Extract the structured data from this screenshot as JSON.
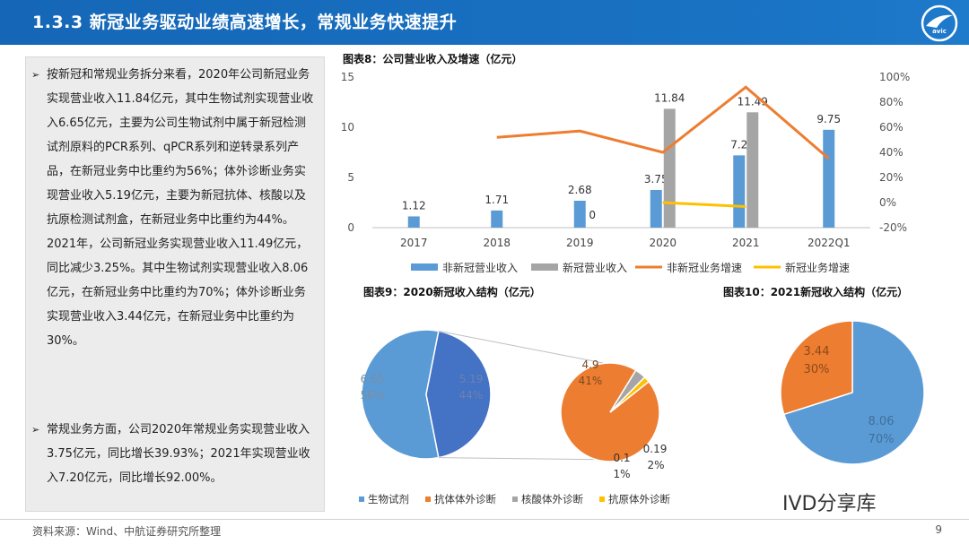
{
  "header": {
    "title": "1.3.3 新冠业务驱动业绩高速增长，常规业务快速提升"
  },
  "left_text": {
    "para1": "按新冠和常规业务拆分来看，2020年公司新冠业务实现营业收入11.84亿元，其中生物试剂实现营业收入6.65亿元，主要为公司生物试剂中属于新冠检测试剂原料的PCR系列、qPCR系列和逆转录系列产品，在新冠业务中比重约为56%；体外诊断业务实现营业收入5.19亿元，主要为新冠抗体、核酸以及抗原检测试剂盒，在新冠业务中比重约为44%。2021年，公司新冠业务实现营业收入11.49亿元，同比减少3.25%。其中生物试剂实现营业收入8.06亿元，在新冠业务中比重约为70%；体外诊断业务实现营业收入3.44亿元，在新冠业务中比重约为30%。",
    "para2": "常规业务方面，公司2020年常规业务实现营业收入3.75亿元，同比增长39.93%；2021年实现营业收入7.20亿元，同比增长92.00%。",
    "bullet": "➢"
  },
  "footer": {
    "source": "资料来源：Wind、中航证券研究所整理",
    "page": "9",
    "watermark": "IVD分享库"
  },
  "chart_data": [
    {
      "type": "bar",
      "title": "图表8：公司营业收入及增速（亿元）",
      "categories": [
        "2017",
        "2018",
        "2019",
        "2020",
        "2021",
        "2022Q1"
      ],
      "series": [
        {
          "name": "非新冠营业收入",
          "kind": "bar",
          "color": "#5b9bd5",
          "values": [
            1.12,
            1.71,
            2.68,
            3.75,
            7.2,
            9.75
          ],
          "labels": [
            "1.12",
            "1.71",
            "2.68",
            "3.75",
            "7.2",
            "9.75"
          ]
        },
        {
          "name": "新冠营业收入",
          "kind": "bar",
          "color": "#a5a5a5",
          "values": [
            null,
            null,
            0,
            11.84,
            11.49,
            null
          ],
          "labels": [
            "",
            "",
            "0",
            "11.84",
            "11.49",
            ""
          ]
        },
        {
          "name": "非新冠业务增速",
          "kind": "line",
          "axis": "right",
          "color": "#ed7d31",
          "values": [
            null,
            52,
            57,
            40,
            92,
            35
          ]
        },
        {
          "name": "新冠业务增速",
          "kind": "line",
          "axis": "right",
          "color": "#ffc000",
          "values": [
            null,
            null,
            null,
            0,
            -3.25,
            null
          ]
        }
      ],
      "ylim": [
        0,
        15
      ],
      "yticks": [
        "0",
        "5",
        "10",
        "15"
      ],
      "y2lim": [
        -20,
        100
      ],
      "y2ticks": [
        "-20%",
        "0%",
        "20%",
        "40%",
        "60%",
        "80%",
        "100%"
      ],
      "legend": "bottom"
    },
    {
      "type": "pie",
      "title": "图表9：2020新冠收入结构（亿元）",
      "slices": [
        {
          "name": "生物试剂",
          "value": 6.65,
          "pct": "56%",
          "color": "#5b9bd5"
        },
        {
          "name": "体外诊断",
          "value": 5.19,
          "pct": "44%",
          "color": "#4472c4"
        }
      ],
      "sub_slices": [
        {
          "name": "抗体体外诊断",
          "value": 4.9,
          "pct": "41%",
          "color": "#ed7d31"
        },
        {
          "name": "核酸体外诊断",
          "value": 0.19,
          "pct": "2%",
          "color": "#a5a5a5"
        },
        {
          "name": "抗原体外诊断",
          "value": 0.1,
          "pct": "1%",
          "color": "#ffc000"
        }
      ],
      "legend": [
        "生物试剂",
        "抗体体外诊断",
        "核酸体外诊断",
        "抗原体外诊断"
      ],
      "legend_colors": [
        "#5b9bd5",
        "#ed7d31",
        "#a5a5a5",
        "#ffc000"
      ]
    },
    {
      "type": "pie",
      "title": "图表10：2021新冠收入结构（亿元）",
      "slices": [
        {
          "name": "生物试剂",
          "value": 8.06,
          "pct": "70%",
          "color": "#5b9bd5"
        },
        {
          "name": "体外诊断",
          "value": 3.44,
          "pct": "30%",
          "color": "#ed7d31"
        }
      ]
    }
  ]
}
